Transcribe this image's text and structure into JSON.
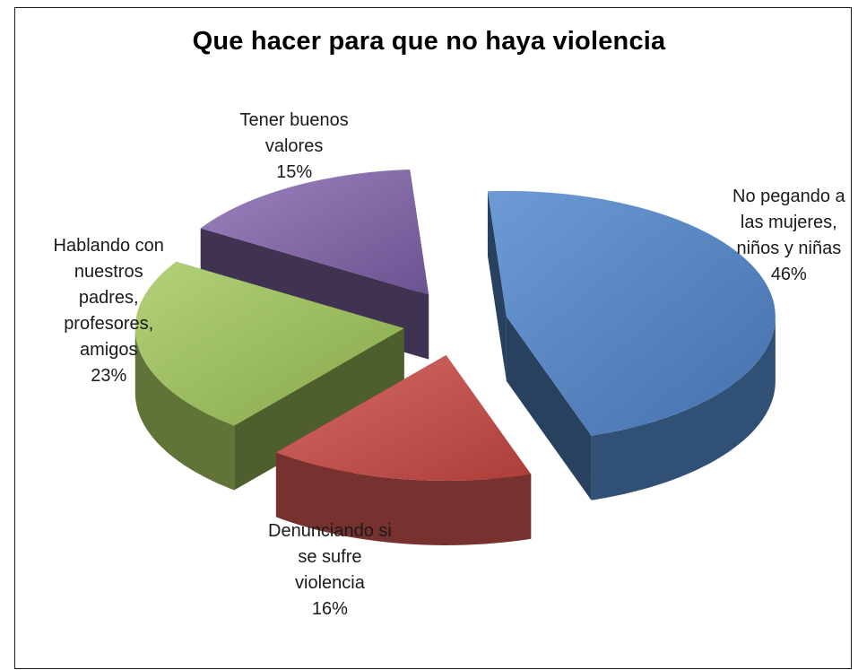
{
  "chart_data": {
    "type": "pie",
    "title": "Que hacer para que no haya violencia",
    "slices": [
      {
        "label_lines": [
          "No pegando a",
          "las mujeres,",
          "niños y niñas"
        ],
        "value": 46,
        "percent_label": "46%",
        "color": "#4f81bd"
      },
      {
        "label_lines": [
          "Denunciando si",
          "se sufre",
          "violencia"
        ],
        "value": 16,
        "percent_label": "16%",
        "color": "#c0504d"
      },
      {
        "label_lines": [
          "Hablando con",
          "nuestros",
          "padres,",
          "profesores,",
          "amigos"
        ],
        "value": 23,
        "percent_label": "23%",
        "color": "#9bbb59"
      },
      {
        "label_lines": [
          "Tener buenos",
          "valores"
        ],
        "value": 15,
        "percent_label": "15%",
        "color": "#8064a2"
      }
    ],
    "style": "3d-exploded",
    "legend": "none"
  }
}
